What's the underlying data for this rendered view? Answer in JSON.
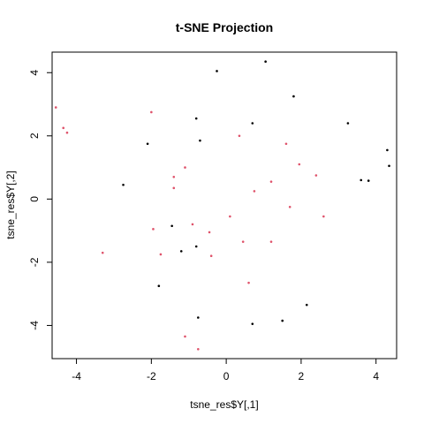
{
  "chart_data": {
    "type": "scatter",
    "title": "t-SNE Projection",
    "xlabel": "tsne_res$Y[,1]",
    "ylabel": "tsne_res$Y[,2]",
    "xlim": [
      -4.65,
      4.55
    ],
    "ylim": [
      -5.05,
      4.65
    ],
    "xticks": [
      -4,
      -2,
      0,
      2,
      4
    ],
    "yticks": [
      -4,
      -2,
      0,
      2,
      4
    ],
    "grid": false,
    "colors": {
      "black": "#000000",
      "red": "#df536b"
    },
    "series": [
      {
        "color_key": "black",
        "points": [
          [
            -0.25,
            4.05
          ],
          [
            1.05,
            4.35
          ],
          [
            1.8,
            3.25
          ],
          [
            -0.8,
            2.55
          ],
          [
            0.7,
            2.4
          ],
          [
            3.25,
            2.4
          ],
          [
            -2.1,
            1.75
          ],
          [
            -0.7,
            1.85
          ],
          [
            4.3,
            1.55
          ],
          [
            4.35,
            1.05
          ],
          [
            3.6,
            0.6
          ],
          [
            3.8,
            0.58
          ],
          [
            -2.75,
            0.45
          ],
          [
            -1.45,
            -0.85
          ],
          [
            -0.8,
            -1.5
          ],
          [
            -1.2,
            -1.65
          ],
          [
            -1.8,
            -2.75
          ],
          [
            2.15,
            -3.35
          ],
          [
            -0.75,
            -3.75
          ],
          [
            1.5,
            -3.85
          ],
          [
            0.7,
            -3.95
          ]
        ]
      },
      {
        "color_key": "red",
        "points": [
          [
            -4.55,
            2.9
          ],
          [
            -4.35,
            2.25
          ],
          [
            -4.25,
            2.1
          ],
          [
            -2.0,
            2.75
          ],
          [
            0.35,
            2.0
          ],
          [
            1.6,
            1.75
          ],
          [
            1.95,
            1.1
          ],
          [
            -1.1,
            1.0
          ],
          [
            -1.4,
            0.7
          ],
          [
            -1.4,
            0.35
          ],
          [
            1.2,
            0.55
          ],
          [
            0.75,
            0.25
          ],
          [
            2.4,
            0.75
          ],
          [
            1.7,
            -0.25
          ],
          [
            2.6,
            -0.55
          ],
          [
            0.1,
            -0.55
          ],
          [
            -0.9,
            -0.8
          ],
          [
            -1.95,
            -0.95
          ],
          [
            -0.45,
            -1.05
          ],
          [
            0.45,
            -1.35
          ],
          [
            1.2,
            -1.35
          ],
          [
            -3.3,
            -1.7
          ],
          [
            -1.75,
            -1.75
          ],
          [
            -0.4,
            -1.8
          ],
          [
            0.6,
            -2.65
          ],
          [
            -1.1,
            -4.35
          ],
          [
            -0.75,
            -4.75
          ]
        ]
      }
    ]
  }
}
